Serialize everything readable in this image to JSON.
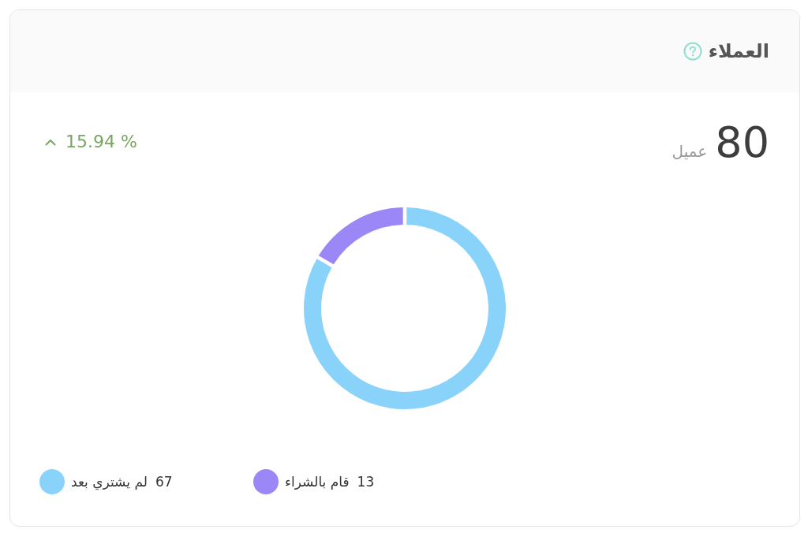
{
  "chart_data": {
    "type": "donut",
    "title": "العملاء",
    "categories": [
      "لم يشتري بعد",
      "قام بالشراء"
    ],
    "values": [
      67,
      13
    ],
    "colors": [
      "#89d3fb",
      "#9b87f5"
    ],
    "legend": "bottom",
    "data_labels": true,
    "annotations": [
      "80",
      "عميل",
      "15.94 %"
    ]
  }
}
